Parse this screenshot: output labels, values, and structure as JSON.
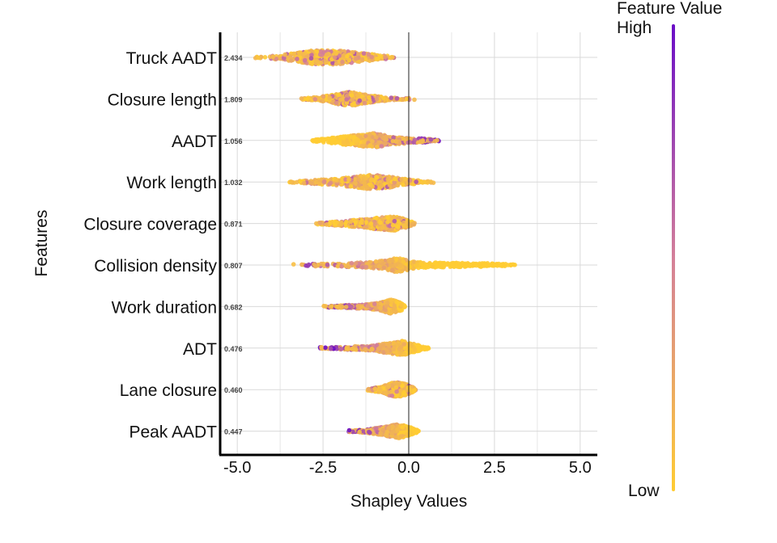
{
  "chart_data": {
    "type": "scatter",
    "subtype": "shap-beeswarm",
    "xlabel": "Shapley Values",
    "ylabel": "Features",
    "xlim": [
      -5.5,
      5.5
    ],
    "xticks": [
      -5.0,
      -2.5,
      0.0,
      2.5,
      5.0
    ],
    "xtick_labels": [
      "-5.0",
      "-2.5",
      "0.0",
      "2.5",
      "5.0"
    ],
    "grid": true,
    "reference_line_x": 0,
    "legend": {
      "title": "Feature Value",
      "high_label": "High",
      "low_label": "Low",
      "placement": "right",
      "colors": {
        "high": "#6a0dc7",
        "mid": "#d4809a",
        "low": "#ffcc33"
      }
    },
    "features": [
      {
        "name": "Truck AADT",
        "mean_abs_shap": "2.434",
        "min": -4.6,
        "max": -0.4,
        "center": -2.3,
        "dist": [
          [
            -4.6,
            0.05
          ],
          [
            -4.0,
            0.2
          ],
          [
            -3.3,
            0.6
          ],
          [
            -2.9,
            0.9
          ],
          [
            -2.3,
            1.0
          ],
          [
            -1.8,
            0.85
          ],
          [
            -1.2,
            0.5
          ],
          [
            -0.8,
            0.3
          ],
          [
            -0.4,
            0.08
          ]
        ],
        "high_side": "mixed"
      },
      {
        "name": "Closure length",
        "mean_abs_shap": "1.809",
        "min": -3.2,
        "max": 0.2,
        "center": -1.7,
        "dist": [
          [
            -3.2,
            0.05
          ],
          [
            -2.6,
            0.25
          ],
          [
            -2.2,
            0.6
          ],
          [
            -1.7,
            1.0
          ],
          [
            -1.3,
            0.6
          ],
          [
            -0.8,
            0.3
          ],
          [
            -0.3,
            0.12
          ],
          [
            0.2,
            0.03
          ]
        ],
        "high_side": "mixed"
      },
      {
        "name": "AADT",
        "mean_abs_shap": "1.056",
        "min": -2.9,
        "max": 0.9,
        "center": -1.0,
        "dist": [
          [
            -2.9,
            0.05
          ],
          [
            -2.3,
            0.35
          ],
          [
            -1.6,
            0.7
          ],
          [
            -1.0,
            1.0
          ],
          [
            -0.5,
            0.55
          ],
          [
            0.0,
            0.4
          ],
          [
            0.5,
            0.25
          ],
          [
            0.9,
            0.06
          ]
        ],
        "high_side": "right"
      },
      {
        "name": "Work length",
        "mean_abs_shap": "1.032",
        "min": -3.5,
        "max": 0.8,
        "center": -1.2,
        "dist": [
          [
            -3.5,
            0.05
          ],
          [
            -2.8,
            0.25
          ],
          [
            -2.0,
            0.5
          ],
          [
            -1.2,
            1.0
          ],
          [
            -0.6,
            0.8
          ],
          [
            -0.1,
            0.4
          ],
          [
            0.4,
            0.15
          ],
          [
            0.8,
            0.04
          ]
        ],
        "high_side": "mixed"
      },
      {
        "name": "Closure coverage",
        "mean_abs_shap": "0.871",
        "min": -2.7,
        "max": 0.2,
        "center": -0.4,
        "dist": [
          [
            -2.7,
            0.1
          ],
          [
            -2.0,
            0.3
          ],
          [
            -1.4,
            0.55
          ],
          [
            -0.9,
            0.8
          ],
          [
            -0.4,
            1.0
          ],
          [
            -0.1,
            0.6
          ],
          [
            0.2,
            0.1
          ]
        ],
        "high_side": "mixed"
      },
      {
        "name": "Collision density",
        "mean_abs_shap": "0.807",
        "min": -3.4,
        "max": 3.1,
        "center": -0.3,
        "dist": [
          [
            -3.4,
            0.05
          ],
          [
            -2.6,
            0.2
          ],
          [
            -1.6,
            0.3
          ],
          [
            -0.8,
            0.55
          ],
          [
            -0.3,
            1.0
          ],
          [
            0.2,
            0.4
          ],
          [
            1.2,
            0.3
          ],
          [
            2.3,
            0.25
          ],
          [
            3.1,
            0.08
          ]
        ],
        "high_side": "left"
      },
      {
        "name": "Work duration",
        "mean_abs_shap": "0.682",
        "min": -2.5,
        "max": -0.1,
        "center": -0.5,
        "dist": [
          [
            -2.5,
            0.05
          ],
          [
            -1.9,
            0.2
          ],
          [
            -1.2,
            0.3
          ],
          [
            -0.8,
            0.6
          ],
          [
            -0.5,
            1.0
          ],
          [
            -0.2,
            0.5
          ],
          [
            -0.1,
            0.1
          ]
        ],
        "high_side": "left"
      },
      {
        "name": "ADT",
        "mean_abs_shap": "0.476",
        "min": -2.6,
        "max": 0.6,
        "center": -0.3,
        "dist": [
          [
            -2.6,
            0.05
          ],
          [
            -1.8,
            0.2
          ],
          [
            -1.0,
            0.35
          ],
          [
            -0.5,
            0.8
          ],
          [
            -0.2,
            1.0
          ],
          [
            0.2,
            0.5
          ],
          [
            0.6,
            0.1
          ]
        ],
        "high_side": "left"
      },
      {
        "name": "Lane closure",
        "mean_abs_shap": "0.460",
        "min": -1.2,
        "max": 0.2,
        "center": -0.3,
        "dist": [
          [
            -1.2,
            0.1
          ],
          [
            -0.8,
            0.4
          ],
          [
            -0.5,
            0.9
          ],
          [
            -0.3,
            1.0
          ],
          [
            -0.1,
            0.8
          ],
          [
            0.2,
            0.15
          ]
        ],
        "high_side": "mixed"
      },
      {
        "name": "Peak AADT",
        "mean_abs_shap": "0.447",
        "min": -1.8,
        "max": 0.3,
        "center": -0.3,
        "dist": [
          [
            -1.8,
            0.05
          ],
          [
            -1.2,
            0.25
          ],
          [
            -0.7,
            0.6
          ],
          [
            -0.3,
            1.0
          ],
          [
            0.0,
            0.6
          ],
          [
            0.3,
            0.1
          ]
        ],
        "high_side": "left"
      }
    ]
  }
}
